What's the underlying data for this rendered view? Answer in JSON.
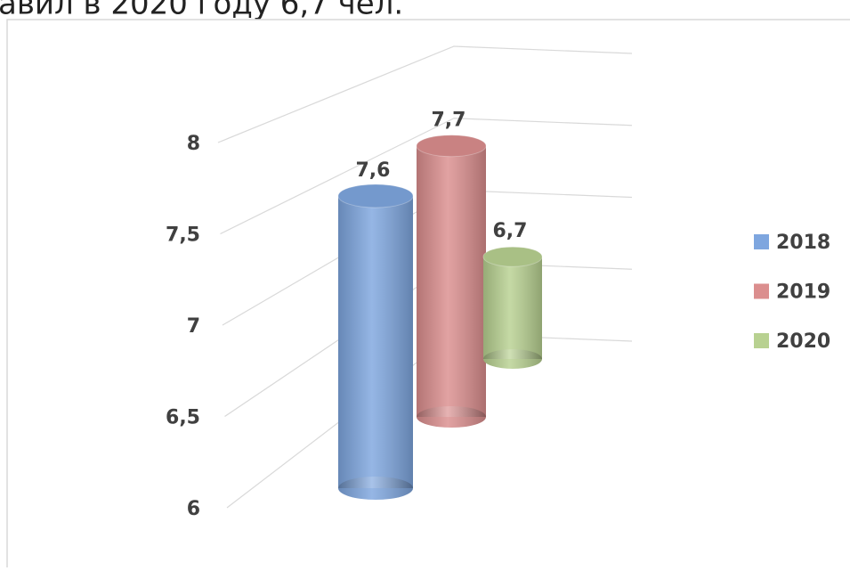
{
  "header_text": "авил в 2020 году 6,7 чел.",
  "chart_data": {
    "type": "bar3d",
    "categories": [
      null
    ],
    "series": [
      {
        "name": "2018",
        "color": "#7ea6df",
        "values": [
          7.6
        ],
        "value_labels": [
          "7,6"
        ]
      },
      {
        "name": "2019",
        "color": "#db8e8e",
        "values": [
          7.7
        ],
        "value_labels": [
          "7,7"
        ]
      },
      {
        "name": "2020",
        "color": "#b8d191",
        "values": [
          6.7
        ],
        "value_labels": [
          "6,7"
        ]
      }
    ],
    "ylim": [
      6,
      8
    ],
    "yticks": [
      6,
      {
        "value": 6.5,
        "label": "6,5"
      },
      7,
      {
        "value": 7.5,
        "label": "7,5"
      },
      8
    ],
    "grid": true,
    "legend": "right"
  }
}
